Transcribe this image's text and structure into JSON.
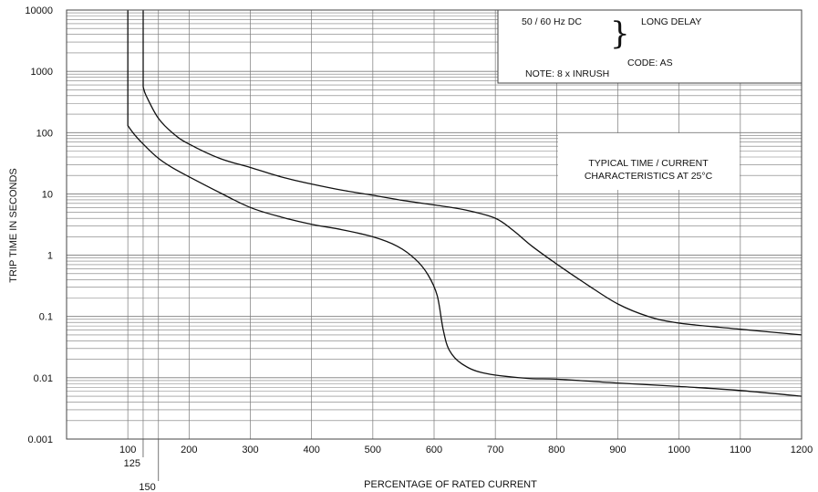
{
  "chart_data": {
    "type": "line",
    "y_scale": "log",
    "xlabel": "PERCENTAGE OF RATED CURRENT",
    "ylabel": "TRIP TIME IN SECONDS",
    "xlim": [
      0,
      1200
    ],
    "ylim": [
      0.001,
      10000
    ],
    "x_ticks": [
      "100",
      "200",
      "300",
      "400",
      "500",
      "600",
      "700",
      "800",
      "900",
      "1000",
      "1100",
      "1200"
    ],
    "x_ticks_extra": [
      {
        "value": 125,
        "label": "125"
      },
      {
        "value": 150,
        "label": "150"
      }
    ],
    "y_ticks": [
      "0.001",
      "0.01",
      "0.1",
      "1",
      "10",
      "100",
      "1000",
      "10000"
    ],
    "grid": true,
    "series": [
      {
        "points": [
          [
            100,
            10000
          ],
          [
            100,
            130
          ],
          [
            110,
            95
          ],
          [
            125,
            65
          ],
          [
            150,
            38
          ],
          [
            175,
            26
          ],
          [
            200,
            19
          ],
          [
            250,
            10.5
          ],
          [
            300,
            6
          ],
          [
            350,
            4.2
          ],
          [
            400,
            3.2
          ],
          [
            450,
            2.6
          ],
          [
            500,
            2.0
          ],
          [
            540,
            1.4
          ],
          [
            570,
            0.85
          ],
          [
            590,
            0.48
          ],
          [
            605,
            0.22
          ],
          [
            615,
            0.06
          ],
          [
            625,
            0.028
          ],
          [
            645,
            0.017
          ],
          [
            680,
            0.012
          ],
          [
            750,
            0.0098
          ],
          [
            800,
            0.0095
          ],
          [
            900,
            0.0082
          ],
          [
            1000,
            0.0072
          ],
          [
            1100,
            0.0062
          ],
          [
            1200,
            0.005
          ]
        ]
      },
      {
        "points": [
          [
            125,
            10000
          ],
          [
            125,
            560
          ],
          [
            130,
            400
          ],
          [
            150,
            170
          ],
          [
            175,
            95
          ],
          [
            200,
            65
          ],
          [
            250,
            38
          ],
          [
            300,
            27
          ],
          [
            350,
            19
          ],
          [
            400,
            14.5
          ],
          [
            450,
            11.5
          ],
          [
            500,
            9.5
          ],
          [
            550,
            7.8
          ],
          [
            600,
            6.6
          ],
          [
            650,
            5.5
          ],
          [
            700,
            4.0
          ],
          [
            730,
            2.5
          ],
          [
            760,
            1.4
          ],
          [
            800,
            0.72
          ],
          [
            850,
            0.33
          ],
          [
            900,
            0.16
          ],
          [
            950,
            0.1
          ],
          [
            1000,
            0.078
          ],
          [
            1100,
            0.062
          ],
          [
            1200,
            0.05
          ]
        ]
      }
    ]
  },
  "notes": {
    "line1": "50 / 60 Hz DC",
    "brace": "}",
    "line1_right": "LONG DELAY",
    "code": "CODE: AS",
    "note": "NOTE: 8 x INRUSH"
  },
  "characteristics": {
    "line1": "TYPICAL TIME / CURRENT",
    "line2": "CHARACTERISTICS AT 25°C"
  }
}
